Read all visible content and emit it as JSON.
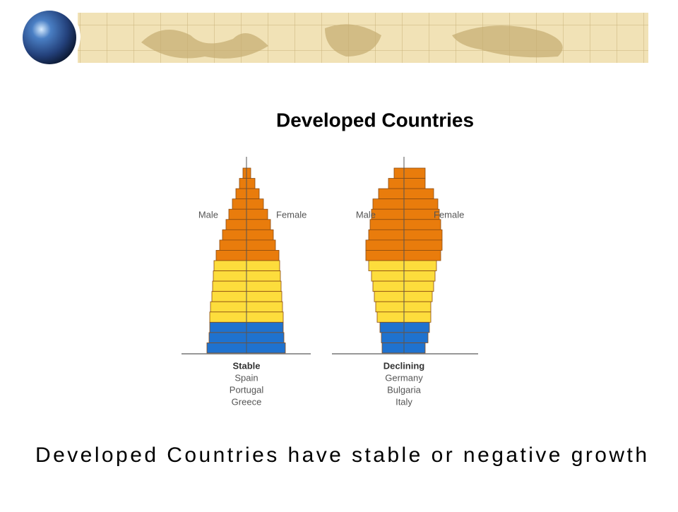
{
  "title": "Developed Countries",
  "caption": "Developed Countries have stable or negative growth",
  "chart_data": [
    {
      "type": "pyramid",
      "series": [
        {
          "name": "Male",
          "values": [
            5,
            10,
            15,
            20,
            25,
            29,
            34,
            38,
            43,
            46,
            47,
            48,
            49,
            51,
            52,
            52,
            53,
            56
          ]
        },
        {
          "name": "Female",
          "values": [
            6,
            12,
            18,
            24,
            30,
            34,
            38,
            41,
            46,
            47,
            48,
            49,
            50,
            51,
            52,
            52,
            53,
            55
          ]
        }
      ],
      "band_colors": [
        "#e97c0c",
        "#e97c0c",
        "#e97c0c",
        "#e97c0c",
        "#e97c0c",
        "#e97c0c",
        "#e97c0c",
        "#e97c0c",
        "#e97c0c",
        "#fddd3c",
        "#fddd3c",
        "#fddd3c",
        "#fddd3c",
        "#fddd3c",
        "#fddd3c",
        "#1f72cf",
        "#1f72cf",
        "#1f72cf"
      ],
      "label": "Stable",
      "countries": [
        "Spain",
        "Portugal",
        "Greece"
      ]
    },
    {
      "type": "pyramid",
      "series": [
        {
          "name": "Male",
          "values": [
            14,
            22,
            36,
            44,
            46,
            48,
            50,
            54,
            54,
            50,
            46,
            44,
            42,
            40,
            38,
            34,
            32,
            31
          ]
        },
        {
          "name": "Female",
          "values": [
            30,
            30,
            42,
            48,
            50,
            52,
            54,
            54,
            52,
            46,
            44,
            42,
            40,
            38,
            38,
            36,
            34,
            30
          ]
        }
      ],
      "band_colors": [
        "#e97c0c",
        "#e97c0c",
        "#e97c0c",
        "#e97c0c",
        "#e97c0c",
        "#e97c0c",
        "#e97c0c",
        "#e97c0c",
        "#e97c0c",
        "#fddd3c",
        "#fddd3c",
        "#fddd3c",
        "#fddd3c",
        "#fddd3c",
        "#fddd3c",
        "#1f72cf",
        "#1f72cf",
        "#1f72cf"
      ],
      "label": "Declining",
      "countries": [
        "Germany",
        "Bulgaria",
        "Italy"
      ]
    }
  ]
}
